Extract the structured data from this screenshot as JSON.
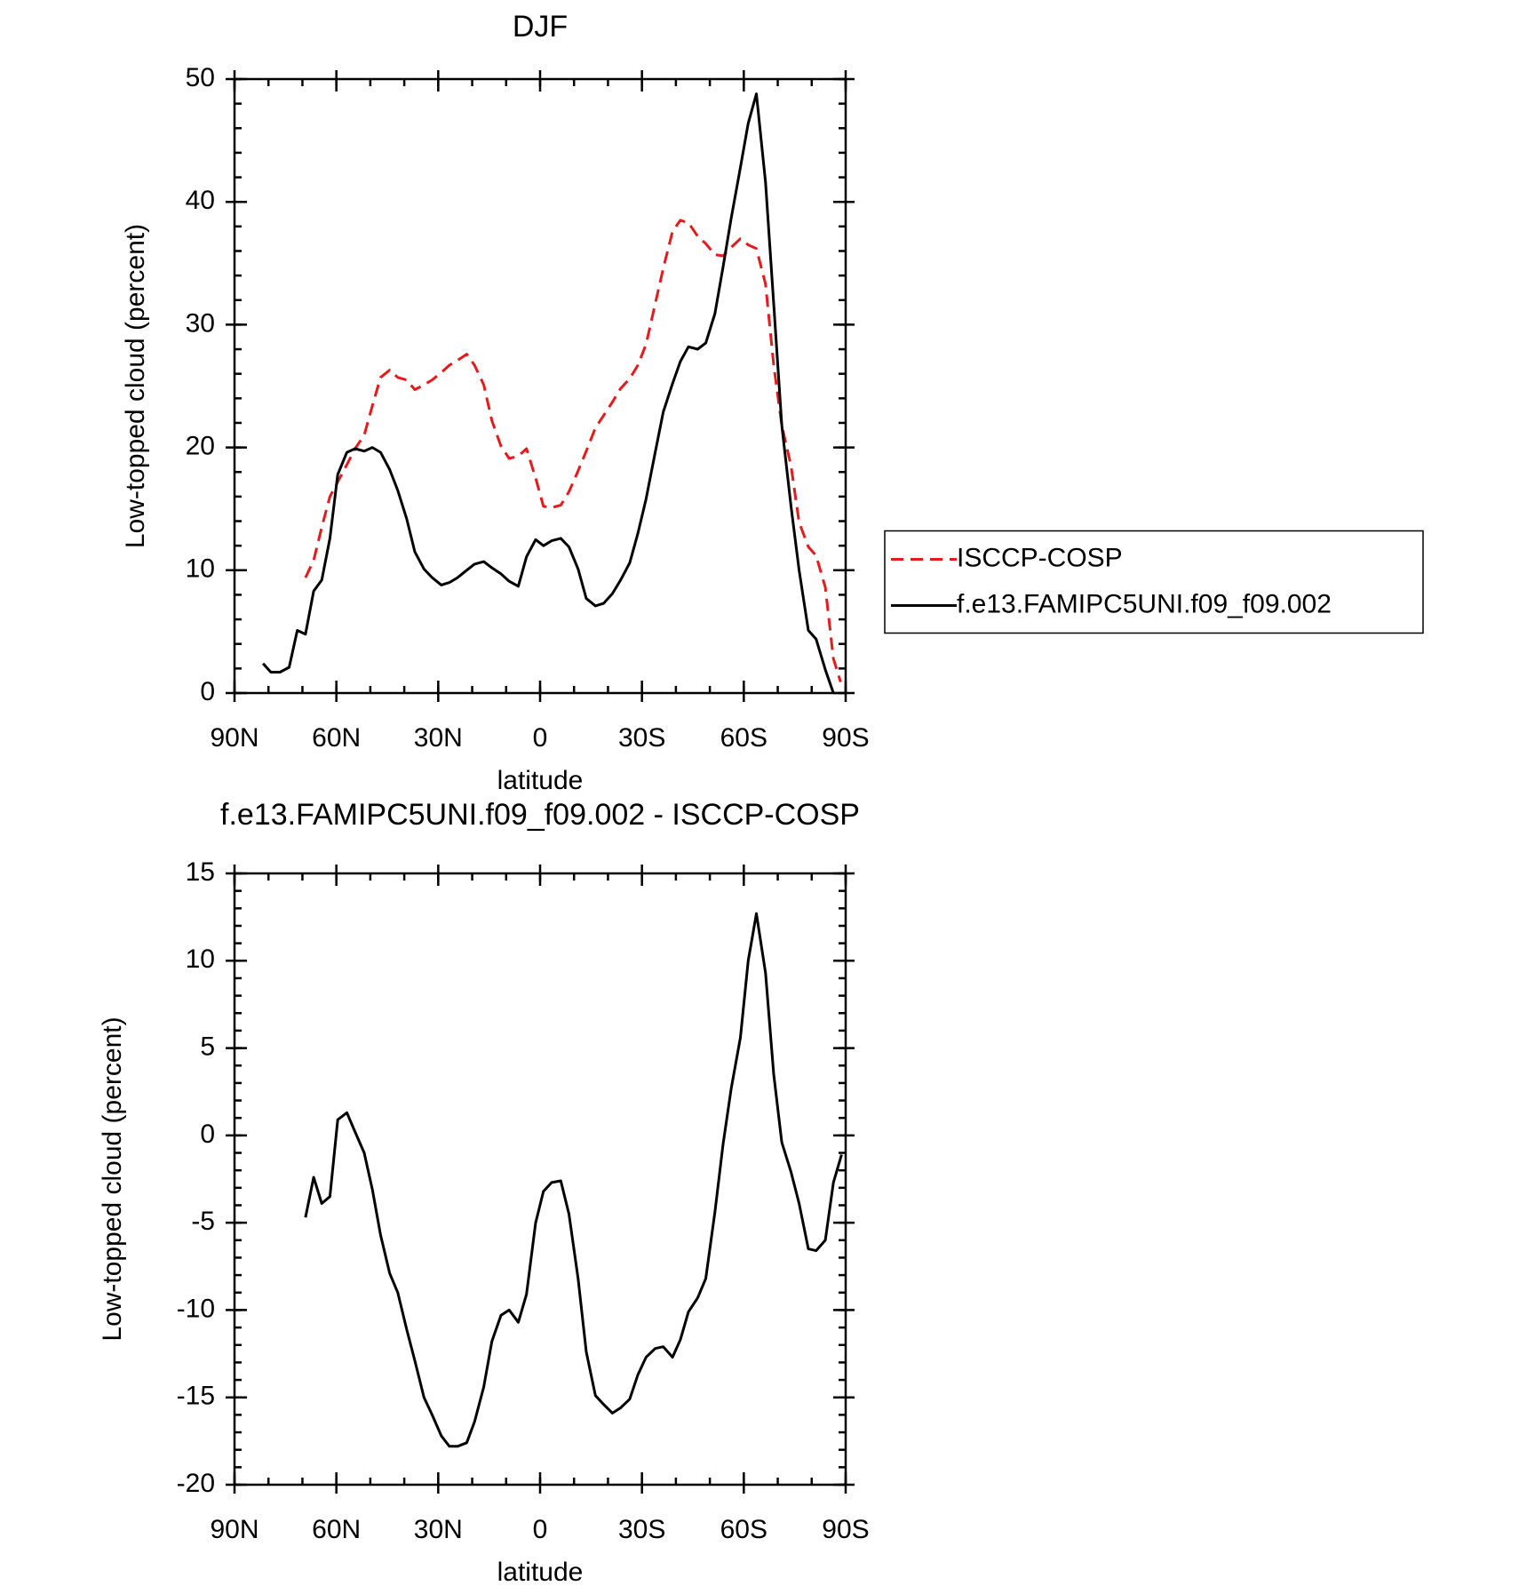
{
  "chart_data": [
    {
      "type": "line",
      "title": "DJF",
      "xlabel": "latitude",
      "ylabel": "Low-topped cloud (percent)",
      "xlim": [
        90,
        -90
      ],
      "xticks": [
        {
          "value": 90,
          "label": "90N"
        },
        {
          "value": 60,
          "label": "60N"
        },
        {
          "value": 30,
          "label": "30N"
        },
        0,
        {
          "value": -30,
          "label": "30S"
        },
        {
          "value": -60,
          "label": "60S"
        },
        {
          "value": -90,
          "label": "90S"
        }
      ],
      "ylim": [
        0,
        50
      ],
      "yticks": [
        0,
        10,
        20,
        30,
        40,
        50
      ],
      "legend": "right",
      "series": [
        {
          "name": "ISCCP-COSP",
          "color": "#e41a1c",
          "dash": "dashed",
          "x": [
            69.1,
            66.7,
            64.3,
            61.9,
            59.6,
            56.9,
            54.5,
            51.8,
            49.4,
            47.0,
            44.3,
            41.9,
            39.3,
            36.9,
            34.2,
            31.8,
            29.1,
            26.7,
            24.3,
            21.6,
            19.3,
            16.6,
            14.2,
            11.5,
            9.1,
            6.4,
            4.0,
            1.3,
            -1.0,
            -3.4,
            -6.1,
            -8.5,
            -11.2,
            -13.6,
            -16.3,
            -18.7,
            -21.3,
            -23.7,
            -26.4,
            -28.8,
            -31.2,
            -33.9,
            -36.3,
            -39.0,
            -41.3,
            -43.7,
            -46.4,
            -48.8,
            -51.5,
            -53.9,
            -56.3,
            -59.0,
            -61.3,
            -63.7,
            -66.4,
            -68.8,
            -71.2,
            -73.9,
            -76.3,
            -79.0,
            -81.3,
            -84.0,
            -86.4,
            -88.5
          ],
          "values": [
            9.4,
            10.8,
            13.5,
            16.0,
            17.2,
            18.6,
            19.9,
            21.0,
            23.4,
            25.7,
            26.3,
            25.7,
            25.5,
            24.7,
            25.1,
            25.5,
            26.1,
            26.7,
            27.1,
            27.6,
            26.7,
            25.1,
            22.2,
            20.1,
            19.1,
            19.3,
            19.9,
            17.5,
            15.2,
            15.1,
            15.3,
            16.4,
            18.1,
            19.7,
            21.6,
            22.6,
            23.7,
            24.8,
            25.6,
            26.7,
            28.4,
            31.7,
            34.6,
            37.6,
            38.5,
            38.3,
            37.2,
            36.6,
            35.7,
            35.6,
            36.3,
            37.0,
            36.5,
            36.2,
            33.3,
            26.7,
            21.8,
            18.5,
            13.9,
            11.9,
            11.2,
            8.6,
            2.8,
            0.9
          ]
        },
        {
          "name": "f.e13.FAMIPC5UNI.f09_f09.002",
          "color": "#000000",
          "dash": "solid",
          "x": [
            81.6,
            79.3,
            76.6,
            73.9,
            71.5,
            69.1,
            66.7,
            64.3,
            61.9,
            59.6,
            56.9,
            54.5,
            51.8,
            49.4,
            47.0,
            44.3,
            41.9,
            39.3,
            36.9,
            34.2,
            31.8,
            29.1,
            26.7,
            24.3,
            21.6,
            19.3,
            16.6,
            14.2,
            11.5,
            9.1,
            6.4,
            4.0,
            1.3,
            -1.0,
            -3.4,
            -6.1,
            -8.5,
            -11.2,
            -13.6,
            -16.3,
            -18.7,
            -21.3,
            -23.7,
            -26.4,
            -28.8,
            -31.2,
            -33.9,
            -36.3,
            -39.0,
            -41.3,
            -43.7,
            -46.4,
            -48.8,
            -51.5,
            -53.9,
            -56.3,
            -59.0,
            -61.3,
            -63.7,
            -66.4,
            -68.8,
            -71.2,
            -73.9,
            -76.3,
            -79.0,
            -81.3,
            -84.0,
            -86.4
          ],
          "values": [
            2.4,
            1.7,
            1.7,
            2.1,
            5.1,
            4.8,
            8.3,
            9.2,
            12.6,
            17.8,
            19.6,
            19.9,
            19.7,
            20.0,
            19.6,
            18.2,
            16.5,
            14.2,
            11.5,
            10.1,
            9.4,
            8.8,
            9.0,
            9.4,
            10.0,
            10.5,
            10.7,
            10.2,
            9.7,
            9.1,
            8.7,
            11.1,
            12.5,
            12.0,
            12.4,
            12.6,
            11.9,
            10.1,
            7.7,
            7.1,
            7.3,
            8.1,
            9.2,
            10.6,
            13.0,
            15.8,
            19.6,
            22.9,
            25.2,
            27.0,
            28.2,
            28.0,
            28.5,
            30.9,
            34.7,
            38.7,
            42.8,
            46.4,
            48.8,
            41.6,
            31.7,
            21.8,
            15.2,
            10.0,
            5.1,
            4.4,
            1.9,
            0
          ]
        }
      ]
    },
    {
      "type": "line",
      "title": "f.e13.FAMIPC5UNI.f09_f09.002 - ISCCP-COSP",
      "xlabel": "latitude",
      "ylabel": "Low-topped cloud (percent)",
      "xlim": [
        90,
        -90
      ],
      "xticks": [
        {
          "value": 90,
          "label": "90N"
        },
        {
          "value": 60,
          "label": "60N"
        },
        {
          "value": 30,
          "label": "30N"
        },
        0,
        {
          "value": -30,
          "label": "30S"
        },
        {
          "value": -60,
          "label": "60S"
        },
        {
          "value": -90,
          "label": "90S"
        }
      ],
      "ylim": [
        -20,
        15
      ],
      "yticks": [
        -20,
        -15,
        -10,
        -5,
        0,
        5,
        10,
        15
      ],
      "series": [
        {
          "color": "#000000",
          "dash": "solid",
          "x": [
            69.1,
            66.7,
            64.3,
            61.9,
            59.6,
            56.9,
            54.5,
            51.8,
            49.4,
            47.0,
            44.3,
            41.9,
            39.3,
            36.9,
            34.2,
            31.8,
            29.1,
            26.7,
            24.3,
            21.6,
            19.3,
            16.6,
            14.2,
            11.5,
            9.1,
            6.4,
            4.0,
            1.3,
            -1.0,
            -3.4,
            -6.1,
            -8.5,
            -11.2,
            -13.6,
            -16.3,
            -18.7,
            -21.3,
            -23.7,
            -26.4,
            -28.8,
            -31.2,
            -33.9,
            -36.3,
            -39.0,
            -41.3,
            -43.7,
            -46.4,
            -48.8,
            -51.5,
            -53.9,
            -56.3,
            -59.0,
            -61.3,
            -63.7,
            -66.4,
            -68.8,
            -71.2,
            -73.9,
            -76.3,
            -79.0,
            -81.3,
            -84.0,
            -86.4,
            -88.8
          ],
          "values": [
            -4.7,
            -2.4,
            -3.9,
            -3.5,
            0.9,
            1.3,
            0.2,
            -1.0,
            -3.1,
            -5.7,
            -7.9,
            -9.0,
            -11.1,
            -12.9,
            -15.0,
            -16.0,
            -17.2,
            -17.8,
            -17.8,
            -17.6,
            -16.4,
            -14.4,
            -11.8,
            -10.3,
            -10.0,
            -10.7,
            -9.1,
            -5.0,
            -3.2,
            -2.7,
            -2.6,
            -4.5,
            -8.2,
            -12.4,
            -14.9,
            -15.4,
            -15.9,
            -15.6,
            -15.1,
            -13.7,
            -12.7,
            -12.2,
            -12.1,
            -12.7,
            -11.7,
            -10.1,
            -9.3,
            -8.2,
            -4.4,
            -0.5,
            2.7,
            5.6,
            10.0,
            12.7,
            9.3,
            3.5,
            -0.4,
            -2.1,
            -3.9,
            -6.5,
            -6.6,
            -6.0,
            -2.7,
            -1.1
          ]
        }
      ]
    }
  ]
}
